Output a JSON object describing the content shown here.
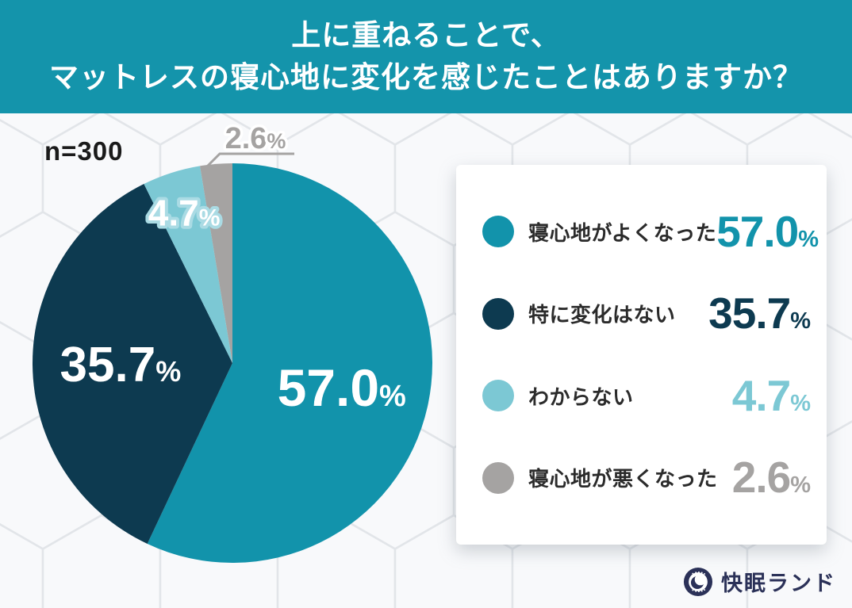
{
  "header": {
    "title_line1": "上に重ねることで、",
    "title_line2": "マットレスの寝心地に変化を感じたことはありますか？",
    "bg_color": "#1494ab",
    "text_color": "#ffffff"
  },
  "sample_size_label": "n=300",
  "chart_data": {
    "type": "pie",
    "title": "上に重ねることで、マットレスの寝心地に変化を感じたことはありますか？",
    "sample_size": "n=300",
    "categories": [
      "寝心地がよくなった",
      "特に変化はない",
      "わからない",
      "寝心地が悪くなった"
    ],
    "values": [
      57.0,
      35.7,
      4.7,
      2.6
    ],
    "unit": "%",
    "colors": [
      "#1293ab",
      "#0d3a50",
      "#7cc8d4",
      "#a5a3a2"
    ],
    "start_angle_deg": 0,
    "direction": "clockwise",
    "legend_position": "right",
    "slice_label_color_inside": "#ffffff",
    "outside_label_color": "#a5a3a2"
  },
  "legend": {
    "items": [
      {
        "label": "寝心地がよくなった",
        "value": "57.0",
        "unit": "%",
        "color": "#1293ab"
      },
      {
        "label": "特に変化はない",
        "value": "35.7",
        "unit": "%",
        "color": "#0d3a50"
      },
      {
        "label": "わからない",
        "value": "4.7",
        "unit": "%",
        "color": "#7cc8d4"
      },
      {
        "label": "寝心地が悪くなった",
        "value": "2.6",
        "unit": "%",
        "color": "#a5a3a2"
      }
    ]
  },
  "footer": {
    "brand_name": "快眠ランド",
    "brand_color": "#2b3158"
  }
}
